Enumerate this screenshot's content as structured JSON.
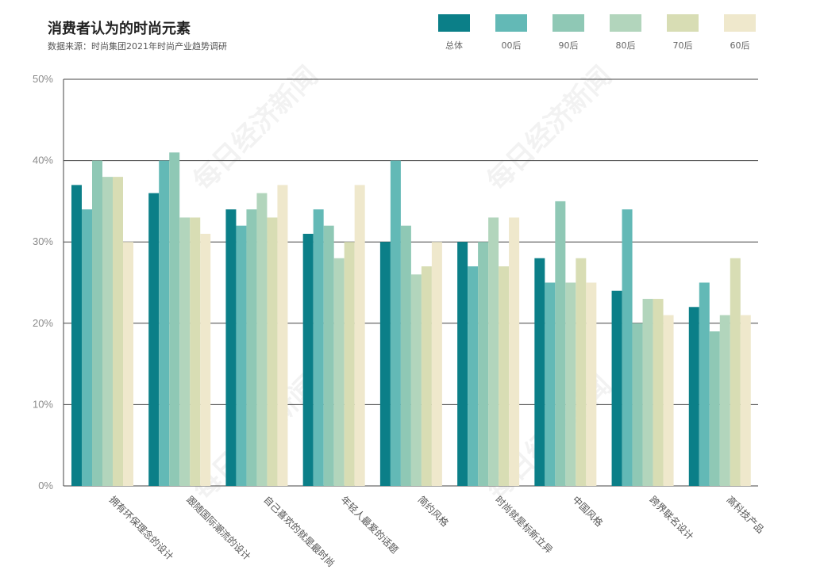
{
  "title": "消费者认为的时尚元素",
  "subtitle": "数据来源：时尚集团2021年时尚产业趋势调研",
  "watermark": "每日经济新闻",
  "chart_data": {
    "type": "bar",
    "categories": [
      "拥有环保理念的设计",
      "跟随国际潮流的设计",
      "自己喜欢的就是最时尚",
      "年轻人最爱的话题",
      "简约风格",
      "时尚就是标新立异",
      "中国风格",
      "跨界联名设计",
      "高科技产品"
    ],
    "series": [
      {
        "name": "总体",
        "color": "#0b7f88",
        "values": [
          37,
          36,
          34,
          31,
          30,
          30,
          28,
          24,
          22
        ]
      },
      {
        "name": "00后",
        "color": "#63b9b6",
        "values": [
          34,
          40,
          32,
          34,
          40,
          27,
          25,
          34,
          25
        ]
      },
      {
        "name": "90后",
        "color": "#8fc8b5",
        "values": [
          40,
          41,
          34,
          32,
          32,
          30,
          35,
          20,
          19
        ]
      },
      {
        "name": "80后",
        "color": "#b2d5bc",
        "values": [
          38,
          33,
          36,
          28,
          26,
          33,
          25,
          23,
          21
        ]
      },
      {
        "name": "70后",
        "color": "#d8ddb4",
        "values": [
          38,
          33,
          33,
          30,
          27,
          27,
          28,
          23,
          28
        ]
      },
      {
        "name": "60后",
        "color": "#efe8cc",
        "values": [
          30,
          31,
          37,
          37,
          30,
          33,
          25,
          21,
          21
        ]
      }
    ],
    "ylim": [
      0,
      50
    ],
    "yticks": [
      "0%",
      "10%",
      "20%",
      "30%",
      "40%",
      "50%"
    ],
    "grid": true,
    "legend_position": "top-right"
  }
}
